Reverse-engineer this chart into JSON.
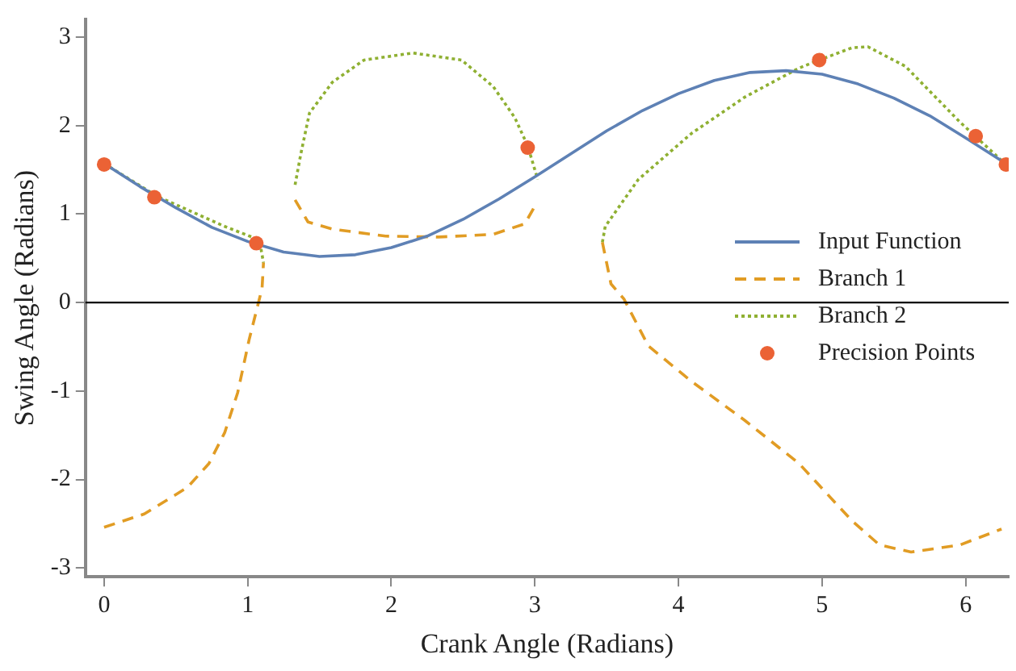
{
  "chart_data": {
    "type": "line",
    "xlabel": "Crank Angle (Radians)",
    "ylabel": "Swing Angle (Radians)",
    "xlim": [
      -0.13,
      6.3
    ],
    "xticks": [
      0,
      1,
      2,
      3,
      4,
      5,
      6
    ],
    "ylim": [
      -3.1,
      3.2
    ],
    "yticks": [
      -3,
      -2,
      -1,
      0,
      1,
      2,
      3
    ],
    "grid": false,
    "legend": "right",
    "ref_lines": [
      {
        "axis": "y",
        "value": 0,
        "color": "#000000"
      }
    ],
    "series": [
      {
        "name": "Input Function",
        "color": "#5e81b5",
        "line_style": "solid",
        "x": [
          0,
          0.25,
          0.5,
          0.75,
          1.0,
          1.25,
          1.5,
          1.75,
          2.0,
          2.25,
          2.5,
          2.75,
          3.0,
          3.25,
          3.5,
          3.75,
          4.0,
          4.25,
          4.5,
          4.75,
          5.0,
          5.25,
          5.5,
          5.75,
          6.0,
          6.28
        ],
        "values": [
          1.57,
          1.31,
          1.07,
          0.85,
          0.69,
          0.57,
          0.52,
          0.54,
          0.62,
          0.75,
          0.94,
          1.17,
          1.42,
          1.68,
          1.94,
          2.17,
          2.36,
          2.51,
          2.6,
          2.62,
          2.58,
          2.47,
          2.31,
          2.11,
          1.86,
          1.57
        ]
      },
      {
        "name": "Branch 1",
        "color": "#e19c24",
        "line_style": "dashed",
        "x": [
          0,
          0.28,
          0.58,
          0.73,
          0.84,
          0.93,
          1.01,
          1.1,
          1.11,
          1.2,
          1.33,
          1.42,
          1.59,
          1.96,
          2.33,
          2.71,
          2.93,
          3.0,
          3.2,
          3.47,
          3.53,
          3.62,
          3.79,
          4.09,
          4.46,
          4.84,
          5.21,
          5.4,
          5.62,
          5.96,
          6.25
        ],
        "values": [
          -2.54,
          -2.39,
          -2.09,
          -1.82,
          -1.47,
          -1.02,
          -0.42,
          0.16,
          0.45,
          null,
          1.16,
          0.91,
          0.83,
          0.75,
          0.74,
          0.77,
          0.89,
          1.09,
          null,
          0.68,
          0.21,
          0.04,
          -0.49,
          -0.89,
          -1.33,
          -1.82,
          -2.47,
          -2.74,
          -2.82,
          -2.74,
          -2.56
        ]
      },
      {
        "name": "Branch 2",
        "color": "#8fb032",
        "line_style": "dotted",
        "x": [
          0,
          0.37,
          0.84,
          1.03,
          1.09,
          1.11,
          1.2,
          1.33,
          1.37,
          1.43,
          1.59,
          1.81,
          2.15,
          2.49,
          2.71,
          2.86,
          2.95,
          3.02,
          3.2,
          3.47,
          3.49,
          3.72,
          4.09,
          4.46,
          4.84,
          4.98,
          5.21,
          5.32,
          5.58,
          5.96,
          6.28
        ],
        "values": [
          1.57,
          1.2,
          0.86,
          0.74,
          0.63,
          0.45,
          null,
          1.33,
          1.68,
          2.14,
          2.49,
          2.74,
          2.82,
          2.74,
          2.44,
          2.09,
          1.77,
          1.39,
          null,
          0.68,
          0.86,
          1.39,
          1.91,
          2.32,
          2.65,
          2.74,
          2.88,
          2.89,
          2.67,
          2.04,
          1.56
        ]
      },
      {
        "name": "Precision Points",
        "type": "scatter",
        "color": "#eb6235",
        "marker": "circle",
        "x": [
          0,
          0.35,
          1.06,
          2.95,
          4.98,
          6.07,
          6.28
        ],
        "values": [
          1.56,
          1.19,
          0.67,
          1.75,
          2.74,
          1.88,
          1.56
        ]
      }
    ]
  }
}
